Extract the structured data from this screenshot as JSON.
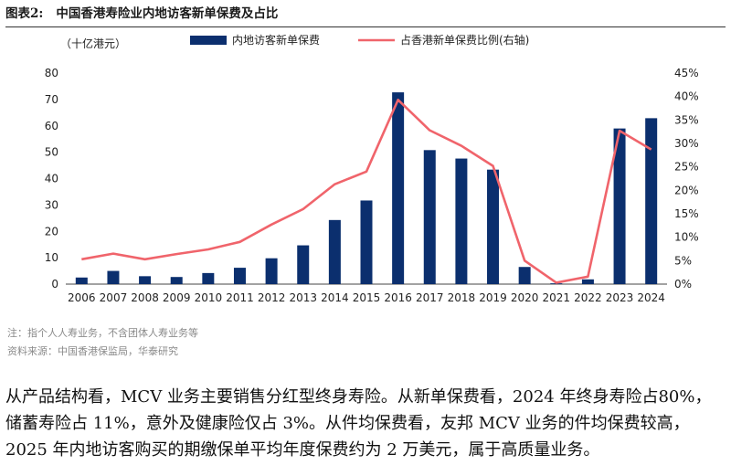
{
  "figure": {
    "label": "图表2:",
    "title": "中国香港寿险业内地访客新单保费及占比"
  },
  "chart_data": {
    "type": "bar",
    "unit_label": "（十亿港元）",
    "categories": [
      "2006",
      "2007",
      "2008",
      "2009",
      "2010",
      "2011",
      "2012",
      "2013",
      "2014",
      "2015",
      "2016",
      "2017",
      "2018",
      "2019",
      "2020",
      "2021",
      "2022",
      "2023",
      "2024"
    ],
    "series": [
      {
        "name": "内地访客新单保费",
        "type": "bar",
        "axis": "left",
        "color": "#0b2f6e",
        "values": [
          2.5,
          5.0,
          3.0,
          2.7,
          4.2,
          6.2,
          9.8,
          14.7,
          24.3,
          31.7,
          72.7,
          50.8,
          47.6,
          43.4,
          6.5,
          0.3,
          1.8,
          59.0,
          62.9
        ]
      },
      {
        "name": "占香港新单保费比例(右轴)",
        "type": "line",
        "axis": "right",
        "color": "#f0646b",
        "values": [
          5.3,
          6.5,
          5.3,
          6.4,
          7.4,
          9.0,
          12.7,
          16.0,
          21.3,
          24.0,
          39.3,
          32.8,
          29.5,
          25.2,
          5.0,
          0.3,
          1.6,
          32.7,
          28.7
        ]
      }
    ],
    "y_left": {
      "min": 0,
      "max": 80,
      "ticks": [
        "0",
        "10",
        "20",
        "30",
        "40",
        "50",
        "60",
        "70",
        "80"
      ]
    },
    "y_right": {
      "min": 0,
      "max": 45,
      "ticks": [
        "0%",
        "5%",
        "10%",
        "15%",
        "20%",
        "25%",
        "30%",
        "35%",
        "40%",
        "45%"
      ]
    },
    "legend_position": "top"
  },
  "notes": {
    "note": "注：指个人人寿业务，不含团体人寿业务等",
    "source": "资料来源：中国香港保监局，华泰研究"
  },
  "body": {
    "paragraph": "从产品结构看，MCV 业务主要销售分红型终身寿险。从新单保费看，2024 年终身寿险占80%，储蓄寿险占 11%，意外及健康险仅占 3%。从件均保费看，友邦 MCV 业务的件均保费较高，2025 年内地访客购买的期缴保单平均年度保费约为 2 万美元，属于高质量业务。"
  }
}
